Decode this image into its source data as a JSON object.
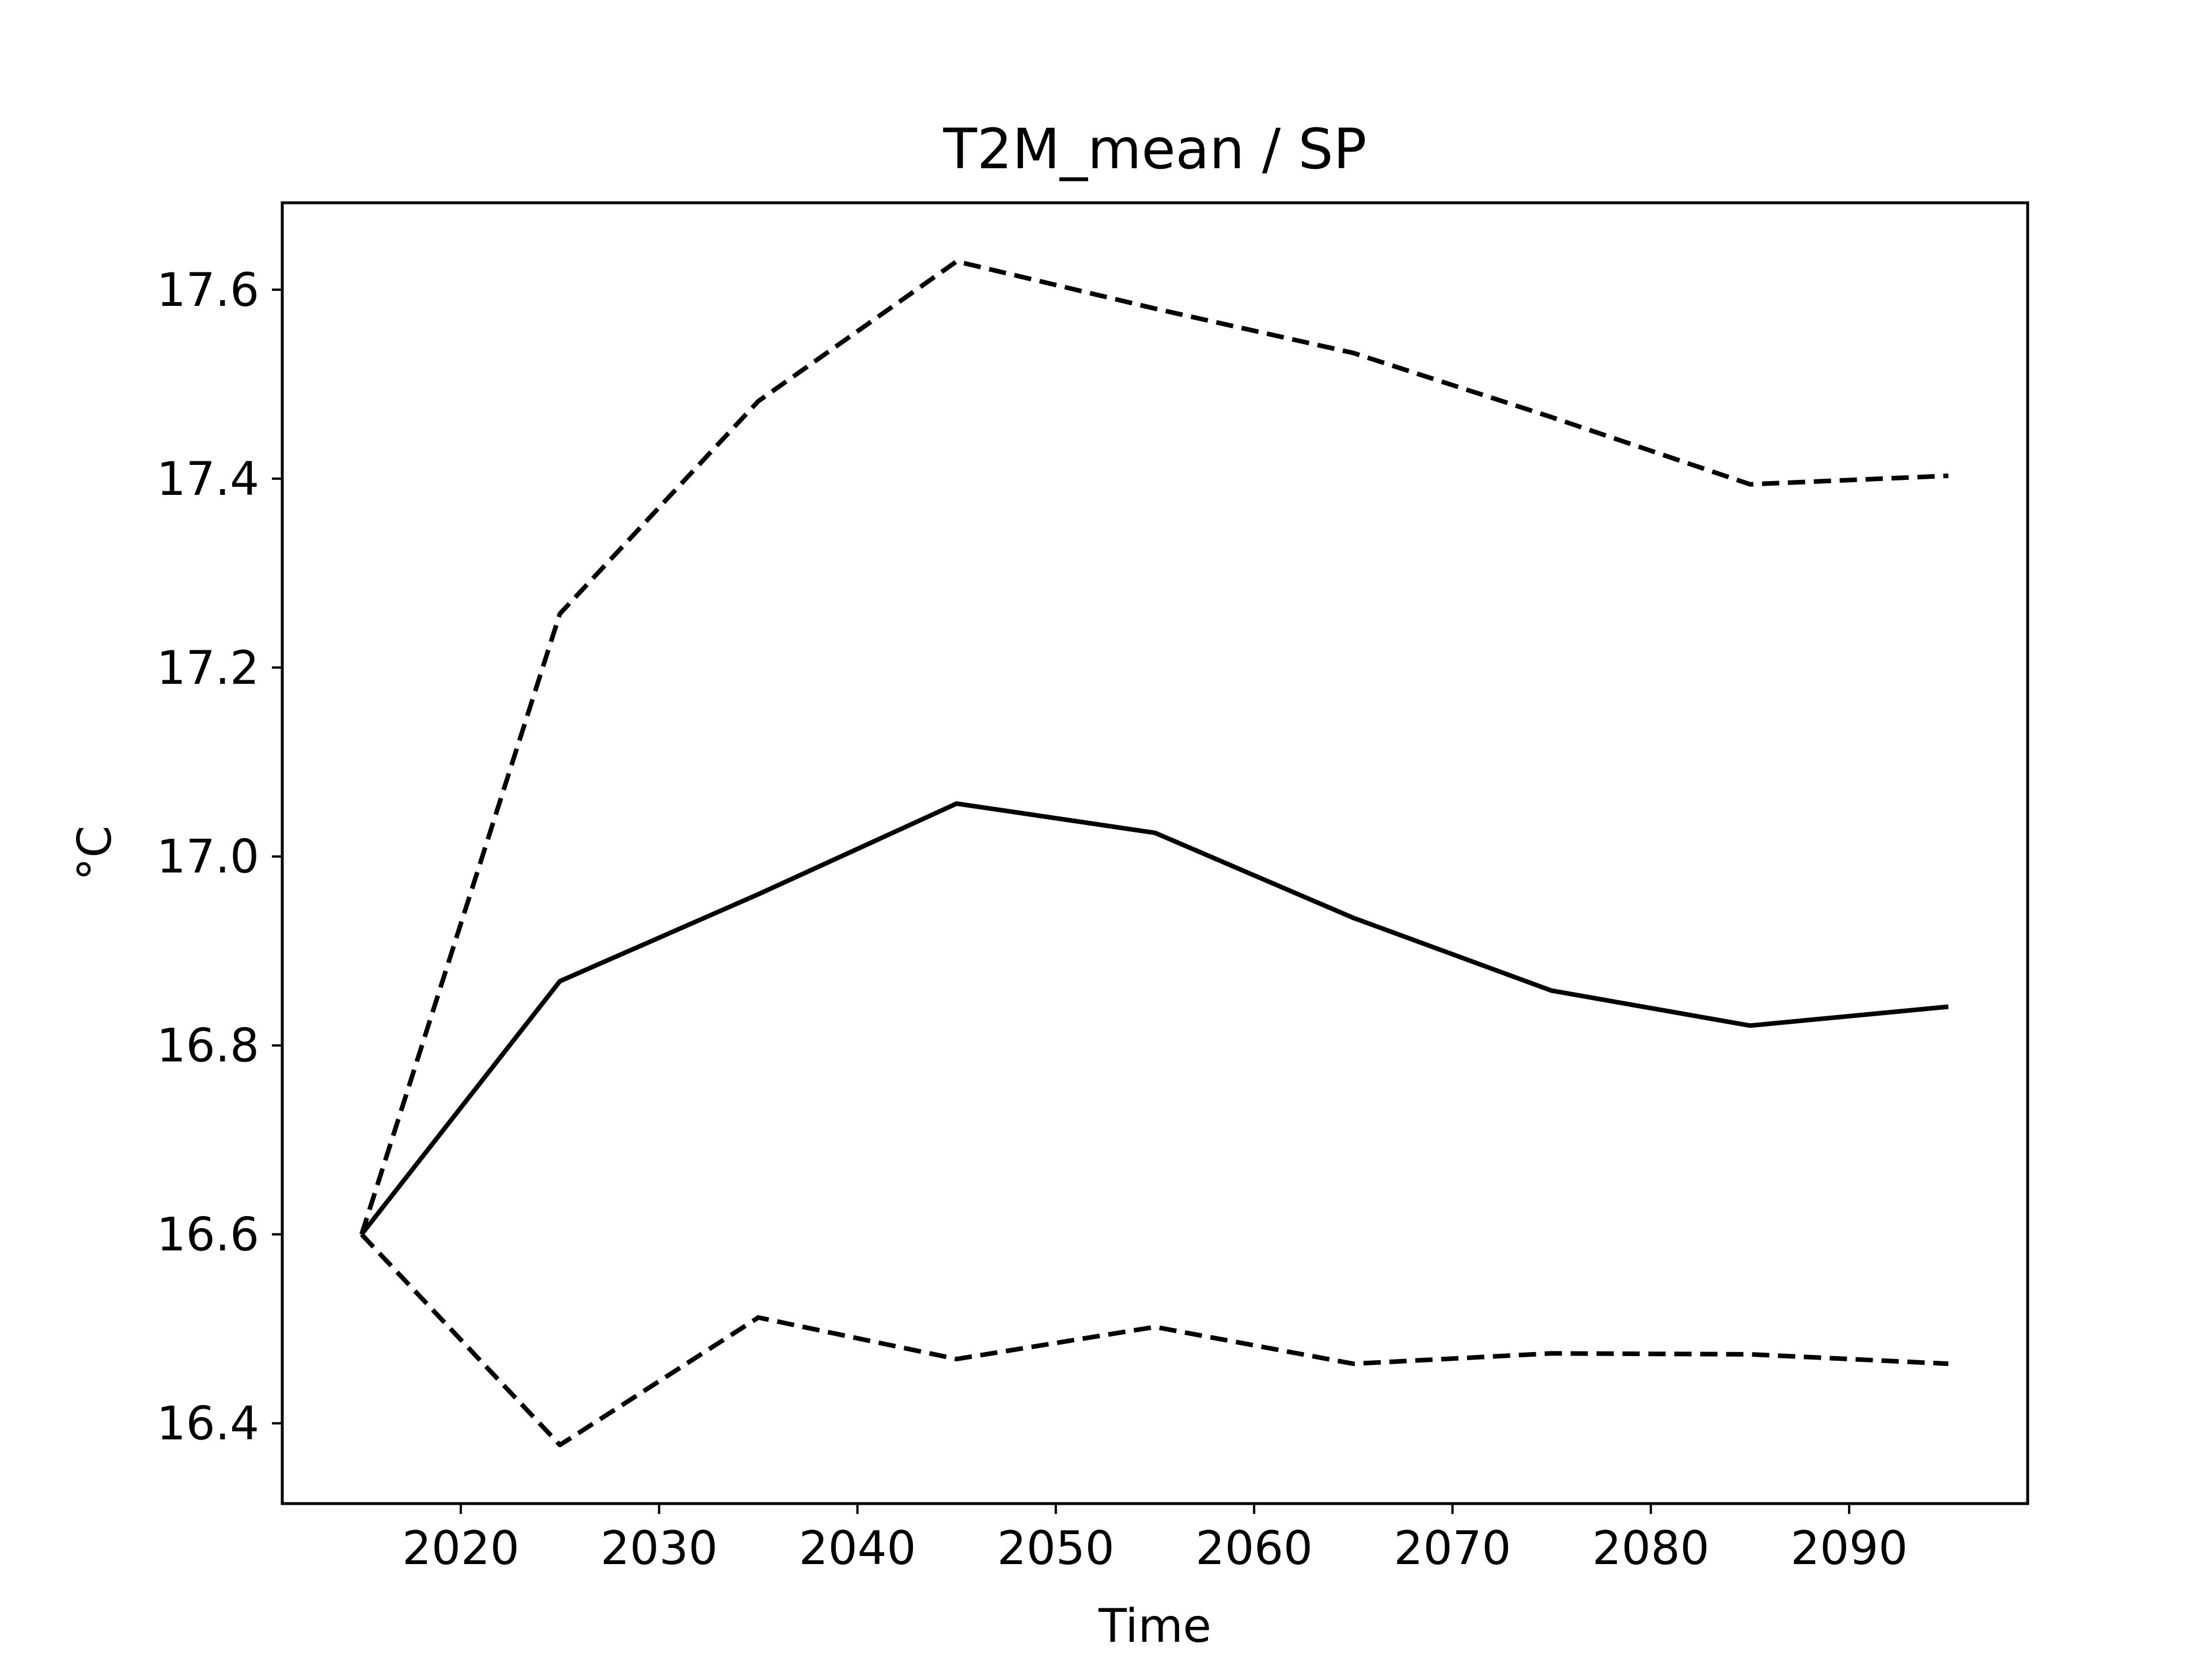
{
  "chart_data": {
    "type": "line",
    "title": "T2M_mean / SP",
    "xlabel": "Time",
    "ylabel": "°C",
    "x": [
      2015,
      2025,
      2035,
      2045,
      2055,
      2065,
      2075,
      2085,
      2095
    ],
    "series": [
      {
        "style": "solid",
        "color": "#000000",
        "values": [
          16.6,
          16.868,
          16.96,
          17.056,
          17.025,
          16.935,
          16.858,
          16.821,
          16.841
        ]
      },
      {
        "style": "dashed",
        "color": "#000000",
        "values": [
          16.6,
          17.257,
          17.482,
          17.63,
          17.58,
          17.533,
          17.465,
          17.394,
          17.403
        ]
      },
      {
        "style": "dashed",
        "color": "#000000",
        "values": [
          16.6,
          16.377,
          16.512,
          16.468,
          16.502,
          16.463,
          16.474,
          16.473,
          16.463
        ]
      }
    ],
    "xlim": [
      2011.0,
      2099.0
    ],
    "ylim": [
      16.315,
      17.692
    ],
    "xticks": [
      "2020",
      "2030",
      "2040",
      "2050",
      "2060",
      "2070",
      "2080",
      "2090"
    ],
    "yticks": [
      "16.4",
      "16.6",
      "16.8",
      "17.0",
      "17.2",
      "17.4",
      "17.6"
    ],
    "grid": false,
    "legend": "none"
  }
}
